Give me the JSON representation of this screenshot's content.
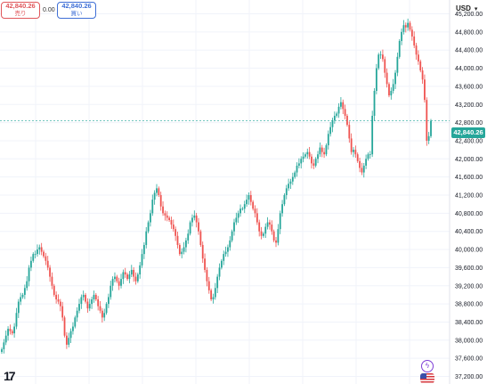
{
  "header": {
    "sell_value": "42,840.26",
    "sell_label": "売り",
    "spread": "0.00",
    "buy_value": "42,840.26",
    "buy_label": "買い",
    "currency": "USD",
    "last_price": "42,840.26"
  },
  "branding": {
    "logo_text": "17",
    "bolt_icon": "lightning-icon",
    "flag_icon": "us-flag-icon"
  },
  "colors": {
    "up": "#26a69a",
    "down": "#ef5350",
    "sell": "#e0575b",
    "buy": "#3f6fd6",
    "grid": "#f0f3fa"
  },
  "chart_data": {
    "type": "candlestick",
    "y_axis": {
      "min": 37200,
      "max": 45200,
      "tick_labels": [
        "45,200.00",
        "44,800.00",
        "44,400.00",
        "44,000.00",
        "43,600.00",
        "43,200.00",
        "42,800.00",
        "42,400.00",
        "42,000.00",
        "41,600.00",
        "41,200.00",
        "40,800.00",
        "40,400.00",
        "40,000.00",
        "39,600.00",
        "39,200.00",
        "38,800.00",
        "38,400.00",
        "38,000.00",
        "37,600.00",
        "37,200.00"
      ]
    },
    "last_price": 42840.26,
    "closes": [
      37800,
      37950,
      38100,
      38250,
      38200,
      38150,
      38300,
      38600,
      38850,
      38950,
      39000,
      39150,
      39300,
      39600,
      39750,
      39900,
      39900,
      40000,
      40050,
      39950,
      39850,
      39750,
      39600,
      39400,
      39200,
      39000,
      38900,
      38850,
      38750,
      38500,
      38100,
      37900,
      38050,
      38200,
      38300,
      38500,
      38650,
      38800,
      38950,
      39000,
      38850,
      38700,
      38800,
      38900,
      39000,
      38900,
      38750,
      38650,
      38500,
      38600,
      38800,
      38950,
      39200,
      39350,
      39400,
      39300,
      39200,
      39350,
      39500,
      39450,
      39350,
      39450,
      39550,
      39400,
      39300,
      39450,
      39650,
      39900,
      40100,
      40400,
      40600,
      40800,
      41100,
      41250,
      41350,
      41200,
      40950,
      40800,
      40750,
      40700,
      40650,
      40550,
      40450,
      40300,
      40100,
      39900,
      39950,
      40050,
      40200,
      40350,
      40600,
      40700,
      40750,
      40600,
      40400,
      40100,
      39800,
      39550,
      39300,
      39100,
      38900,
      38950,
      39150,
      39400,
      39600,
      39750,
      39900,
      39950,
      40050,
      40200,
      40400,
      40600,
      40700,
      40800,
      40900,
      40900,
      41000,
      41100,
      41200,
      41050,
      40900,
      40800,
      40600,
      40400,
      40300,
      40350,
      40500,
      40600,
      40550,
      40400,
      40200,
      40150,
      40450,
      40800,
      41000,
      41200,
      41350,
      41450,
      41500,
      41600,
      41700,
      41850,
      41900,
      42000,
      42050,
      42100,
      42150,
      42050,
      41900,
      41850,
      42000,
      42100,
      42250,
      42150,
      42100,
      42300,
      42550,
      42700,
      42850,
      42950,
      43000,
      43150,
      43250,
      43100,
      42950,
      42750,
      42450,
      42150,
      42200,
      42100,
      41950,
      41800,
      41700,
      41850,
      42000,
      42100,
      42100,
      42950,
      43500,
      44000,
      44300,
      44300,
      44200,
      43900,
      43650,
      43400,
      43500,
      43650,
      43900,
      44250,
      44600,
      44800,
      44950,
      44900,
      45000,
      44850,
      44700,
      44500,
      44300,
      44150,
      43950,
      43750,
      43300,
      42400,
      42500,
      42840
    ]
  }
}
